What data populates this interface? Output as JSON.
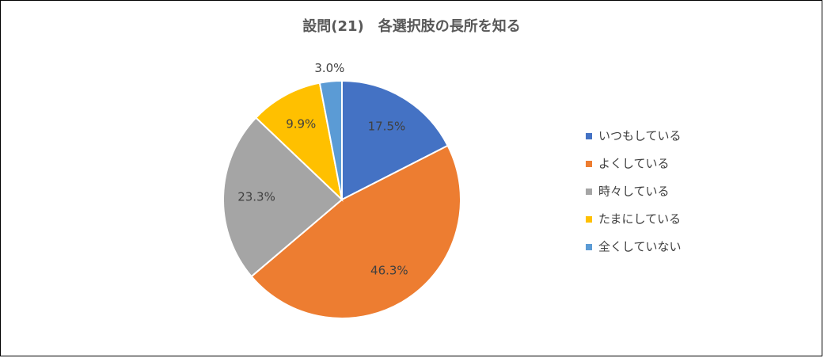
{
  "chart_data": {
    "type": "pie",
    "title": "設問(21)　各選択肢の長所を知る",
    "categories": [
      "いつもしている",
      "よくしている",
      "時々している",
      "たまにしている",
      "全くしていない"
    ],
    "values": [
      17.5,
      46.3,
      23.3,
      9.9,
      3.0
    ],
    "value_labels": [
      "17.5%",
      "46.3%",
      "23.3%",
      "9.9%",
      "3.0%"
    ],
    "colors": [
      "#4472c4",
      "#ed7d31",
      "#a5a5a5",
      "#ffc000",
      "#5b9bd5"
    ],
    "legend": "right"
  }
}
